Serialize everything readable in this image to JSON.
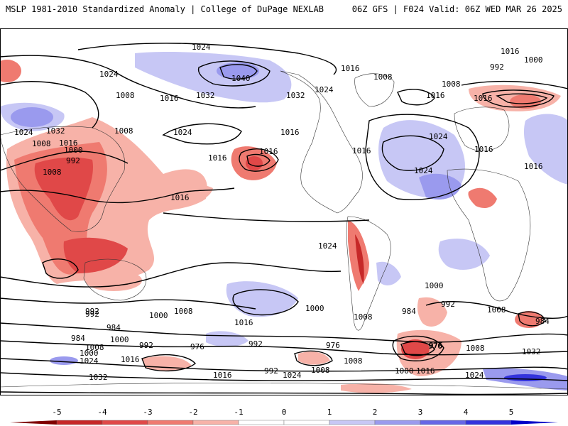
{
  "header": {
    "left": "MSLP 1981-2010 Standardized Anomaly | College of DuPage NEXLAB",
    "right": "06Z GFS | F024 Valid: 06Z WED MAR 26 2025"
  },
  "colorbar": {
    "ticks": [
      "-5",
      "-4",
      "-3",
      "-2",
      "-1",
      "0",
      "1",
      "2",
      "3",
      "4",
      "5"
    ],
    "colors": [
      "#7f0000",
      "#c62828",
      "#e04848",
      "#ef7a70",
      "#f7b2a8",
      "#ffffff",
      "#ffffff",
      "#c7c7f5",
      "#9a9aee",
      "#6666e6",
      "#3333dd",
      "#0000c8"
    ]
  },
  "map": {
    "contour_labels": [
      {
        "text": "1024"
      },
      {
        "text": "1016"
      },
      {
        "text": "1000"
      },
      {
        "text": "992"
      },
      {
        "text": "1024"
      },
      {
        "text": "1040"
      },
      {
        "text": "1032"
      },
      {
        "text": "1008"
      },
      {
        "text": "1016"
      },
      {
        "text": "1024"
      },
      {
        "text": "1032"
      },
      {
        "text": "1008"
      },
      {
        "text": "1016"
      },
      {
        "text": "1008"
      },
      {
        "text": "1016"
      },
      {
        "text": "1016"
      },
      {
        "text": "1024"
      },
      {
        "text": "1016"
      },
      {
        "text": "1016"
      },
      {
        "text": "1024"
      },
      {
        "text": "1032"
      },
      {
        "text": "1024"
      },
      {
        "text": "1008"
      },
      {
        "text": "1016"
      },
      {
        "text": "1000"
      },
      {
        "text": "992"
      },
      {
        "text": "1008"
      },
      {
        "text": "1008"
      },
      {
        "text": "1016"
      },
      {
        "text": "1016"
      },
      {
        "text": "1016"
      },
      {
        "text": "1024"
      },
      {
        "text": "1016"
      },
      {
        "text": "1016"
      },
      {
        "text": "1024"
      },
      {
        "text": "1000"
      },
      {
        "text": "992"
      },
      {
        "text": "984"
      },
      {
        "text": "976"
      },
      {
        "text": "992"
      },
      {
        "text": "1008"
      },
      {
        "text": "1000"
      },
      {
        "text": "1008"
      },
      {
        "text": "1016"
      },
      {
        "text": "1000"
      },
      {
        "text": "984"
      },
      {
        "text": "1008"
      },
      {
        "text": "984"
      },
      {
        "text": "992"
      },
      {
        "text": "976"
      },
      {
        "text": "976"
      },
      {
        "text": "984"
      },
      {
        "text": "976"
      },
      {
        "text": "1008"
      },
      {
        "text": "1032"
      },
      {
        "text": "992"
      },
      {
        "text": "1000"
      },
      {
        "text": "992"
      },
      {
        "text": "1008"
      },
      {
        "text": "1016"
      },
      {
        "text": "1000"
      },
      {
        "text": "1024"
      },
      {
        "text": "1016"
      },
      {
        "text": "1024"
      },
      {
        "text": "1008"
      },
      {
        "text": "1024"
      },
      {
        "text": "1032"
      },
      {
        "text": "1008"
      },
      {
        "text": "992"
      },
      {
        "text": "1000"
      },
      {
        "text": "1016"
      }
    ]
  }
}
